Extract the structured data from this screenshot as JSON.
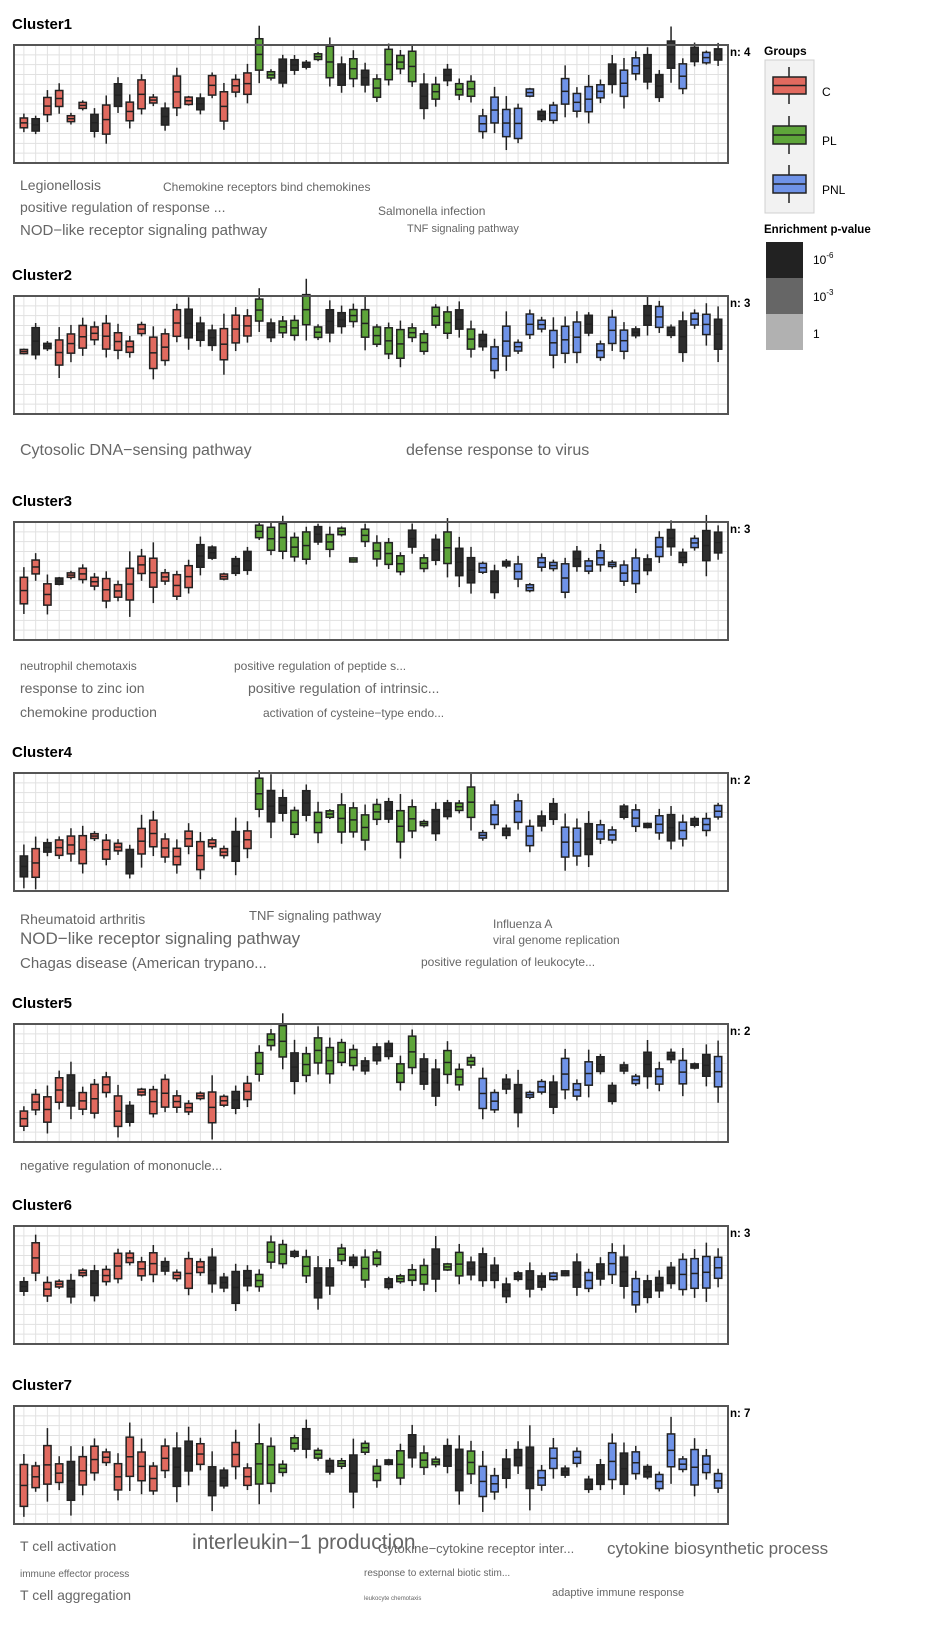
{
  "figure": {
    "legend": {
      "groups_title": "Groups",
      "groups": [
        {
          "name": "C",
          "color": "#e16a5f"
        },
        {
          "name": "PL",
          "color": "#5ea53a"
        },
        {
          "name": "PNL",
          "color": "#6f93e8"
        }
      ],
      "pvalue_title": "Enrichment p-value",
      "pvalue_levels": [
        {
          "base": "10",
          "exp": "-6",
          "color": "#222222"
        },
        {
          "base": "10",
          "exp": "-3",
          "color": "#666666"
        },
        {
          "base": "1",
          "exp": "",
          "color": "#b1b1b1"
        }
      ]
    },
    "colors": {
      "frame": "#555555",
      "grid": "#e1e1e1",
      "box_edge": "#222222",
      "term": "#666666"
    }
  },
  "chart_data": [
    {
      "type": "boxplot",
      "title": "Cluster1",
      "n_label": "n: 4",
      "group_counts": [
        20,
        19,
        21
      ],
      "y_seed": [
        0.6,
        0.1,
        0.6,
        0.1
      ],
      "terms": [
        {
          "text": "Legionellosis",
          "size": 14
        },
        {
          "text": "positive regulation of response ...",
          "size": 14
        },
        {
          "text": "NOD−like receptor signaling pathway",
          "size": 15
        },
        {
          "text": "Chemokine receptors bind chemokines",
          "size": 12
        },
        {
          "text": "Salmonella infection",
          "size": 12
        },
        {
          "text": "TNF signaling pathway",
          "size": 11
        }
      ]
    },
    {
      "type": "boxplot",
      "title": "Cluster2",
      "n_label": "n: 3",
      "group_counts": [
        20,
        19,
        21
      ],
      "y_seed": [
        0.4,
        0.2,
        0.4,
        0.25
      ],
      "terms": [
        {
          "text": "Cytosolic DNA−sensing pathway",
          "size": 16
        },
        {
          "text": "defense response to virus",
          "size": 16
        }
      ]
    },
    {
      "type": "boxplot",
      "title": "Cluster3",
      "n_label": "n: 3",
      "group_counts": [
        20,
        19,
        21
      ],
      "y_seed": [
        0.5,
        0.1,
        0.5,
        0.2
      ],
      "terms": [
        {
          "text": "neutrophil chemotaxis",
          "size": 12
        },
        {
          "text": "response to zinc ion",
          "size": 14
        },
        {
          "text": "chemokine production",
          "size": 14
        },
        {
          "text": "positive regulation of peptide s...",
          "size": 12
        },
        {
          "text": "positive regulation of intrinsic...",
          "size": 14
        },
        {
          "text": "activation of cysteine−type endo...",
          "size": 12
        }
      ]
    },
    {
      "type": "boxplot",
      "title": "Cluster4",
      "n_label": "n: 2",
      "group_counts": [
        20,
        19,
        21
      ],
      "y_seed": [
        0.7,
        0.3,
        0.45,
        0.45
      ],
      "terms": [
        {
          "text": "Rheumatoid arthritis",
          "size": 14
        },
        {
          "text": "NOD−like receptor signaling pathway",
          "size": 17
        },
        {
          "text": "Chagas disease (American trypano...",
          "size": 15
        },
        {
          "text": "TNF signaling pathway",
          "size": 13
        },
        {
          "text": "Influenza A",
          "size": 12
        },
        {
          "text": "viral genome replication",
          "size": 12
        },
        {
          "text": "positive regulation of leukocyte...",
          "size": 12
        }
      ]
    },
    {
      "type": "boxplot",
      "title": "Cluster5",
      "n_label": "n: 2",
      "group_counts": [
        20,
        19,
        21
      ],
      "y_seed": [
        0.7,
        0.2,
        0.6,
        0.35
      ],
      "terms": [
        {
          "text": "negative regulation of mononucle...",
          "size": 13
        }
      ]
    },
    {
      "type": "boxplot",
      "title": "Cluster6",
      "n_label": "n: 3",
      "group_counts": [
        20,
        19,
        21
      ],
      "y_seed": [
        0.4,
        0.35,
        0.45,
        0.4
      ],
      "terms": []
    },
    {
      "type": "boxplot",
      "title": "Cluster7",
      "n_label": "n: 7",
      "group_counts": [
        20,
        19,
        21
      ],
      "y_seed": [
        0.55,
        0.4,
        0.55,
        0.5
      ],
      "terms": [
        {
          "text": "T cell activation",
          "size": 14
        },
        {
          "text": "interleukin−1 production",
          "size": 21
        },
        {
          "text": "Cytokine−cytokine receptor inter...",
          "size": 13
        },
        {
          "text": "immune effector process",
          "size": 10
        },
        {
          "text": "response to external biotic stim...",
          "size": 10
        },
        {
          "text": "cytokine biosynthetic process",
          "size": 17
        },
        {
          "text": "T cell aggregation",
          "size": 14
        },
        {
          "text": "leukocyte chemotaxis",
          "size": 6
        },
        {
          "text": "adaptive immune response",
          "size": 11
        }
      ]
    }
  ]
}
